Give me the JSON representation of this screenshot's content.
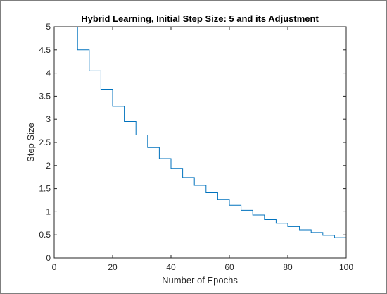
{
  "chart_data": {
    "type": "line",
    "title": "Hybrid Learning, Initial Step Size: 5 and its Adjustment",
    "xlabel": "Number of Epochs",
    "ylabel": "Step Size",
    "xlim": [
      0,
      100
    ],
    "ylim": [
      0,
      5
    ],
    "xticks": [
      0,
      20,
      40,
      60,
      80,
      100
    ],
    "yticks": [
      0,
      0.5,
      1,
      1.5,
      2,
      2.5,
      3,
      3.5,
      4,
      4.5,
      5
    ],
    "xtick_labels": [
      "0",
      "20",
      "40",
      "60",
      "80",
      "100"
    ],
    "ytick_labels": [
      "0",
      "0.5",
      "1",
      "1.5",
      "2",
      "2.5",
      "3",
      "3.5",
      "4",
      "4.5",
      "5"
    ],
    "grid": false,
    "line_color": "#0072bd",
    "series": [
      {
        "style": "stairs",
        "x": [
          0,
          8,
          12,
          16,
          20,
          24,
          28,
          32,
          36,
          40,
          44,
          48,
          52,
          56,
          60,
          64,
          68,
          72,
          76,
          80,
          84,
          88,
          92,
          96,
          100
        ],
        "values": [
          5.0,
          4.5,
          4.05,
          3.65,
          3.28,
          2.95,
          2.66,
          2.39,
          2.15,
          1.94,
          1.74,
          1.57,
          1.41,
          1.27,
          1.14,
          1.03,
          0.93,
          0.83,
          0.75,
          0.68,
          0.61,
          0.55,
          0.49,
          0.44,
          0.44
        ]
      }
    ]
  }
}
